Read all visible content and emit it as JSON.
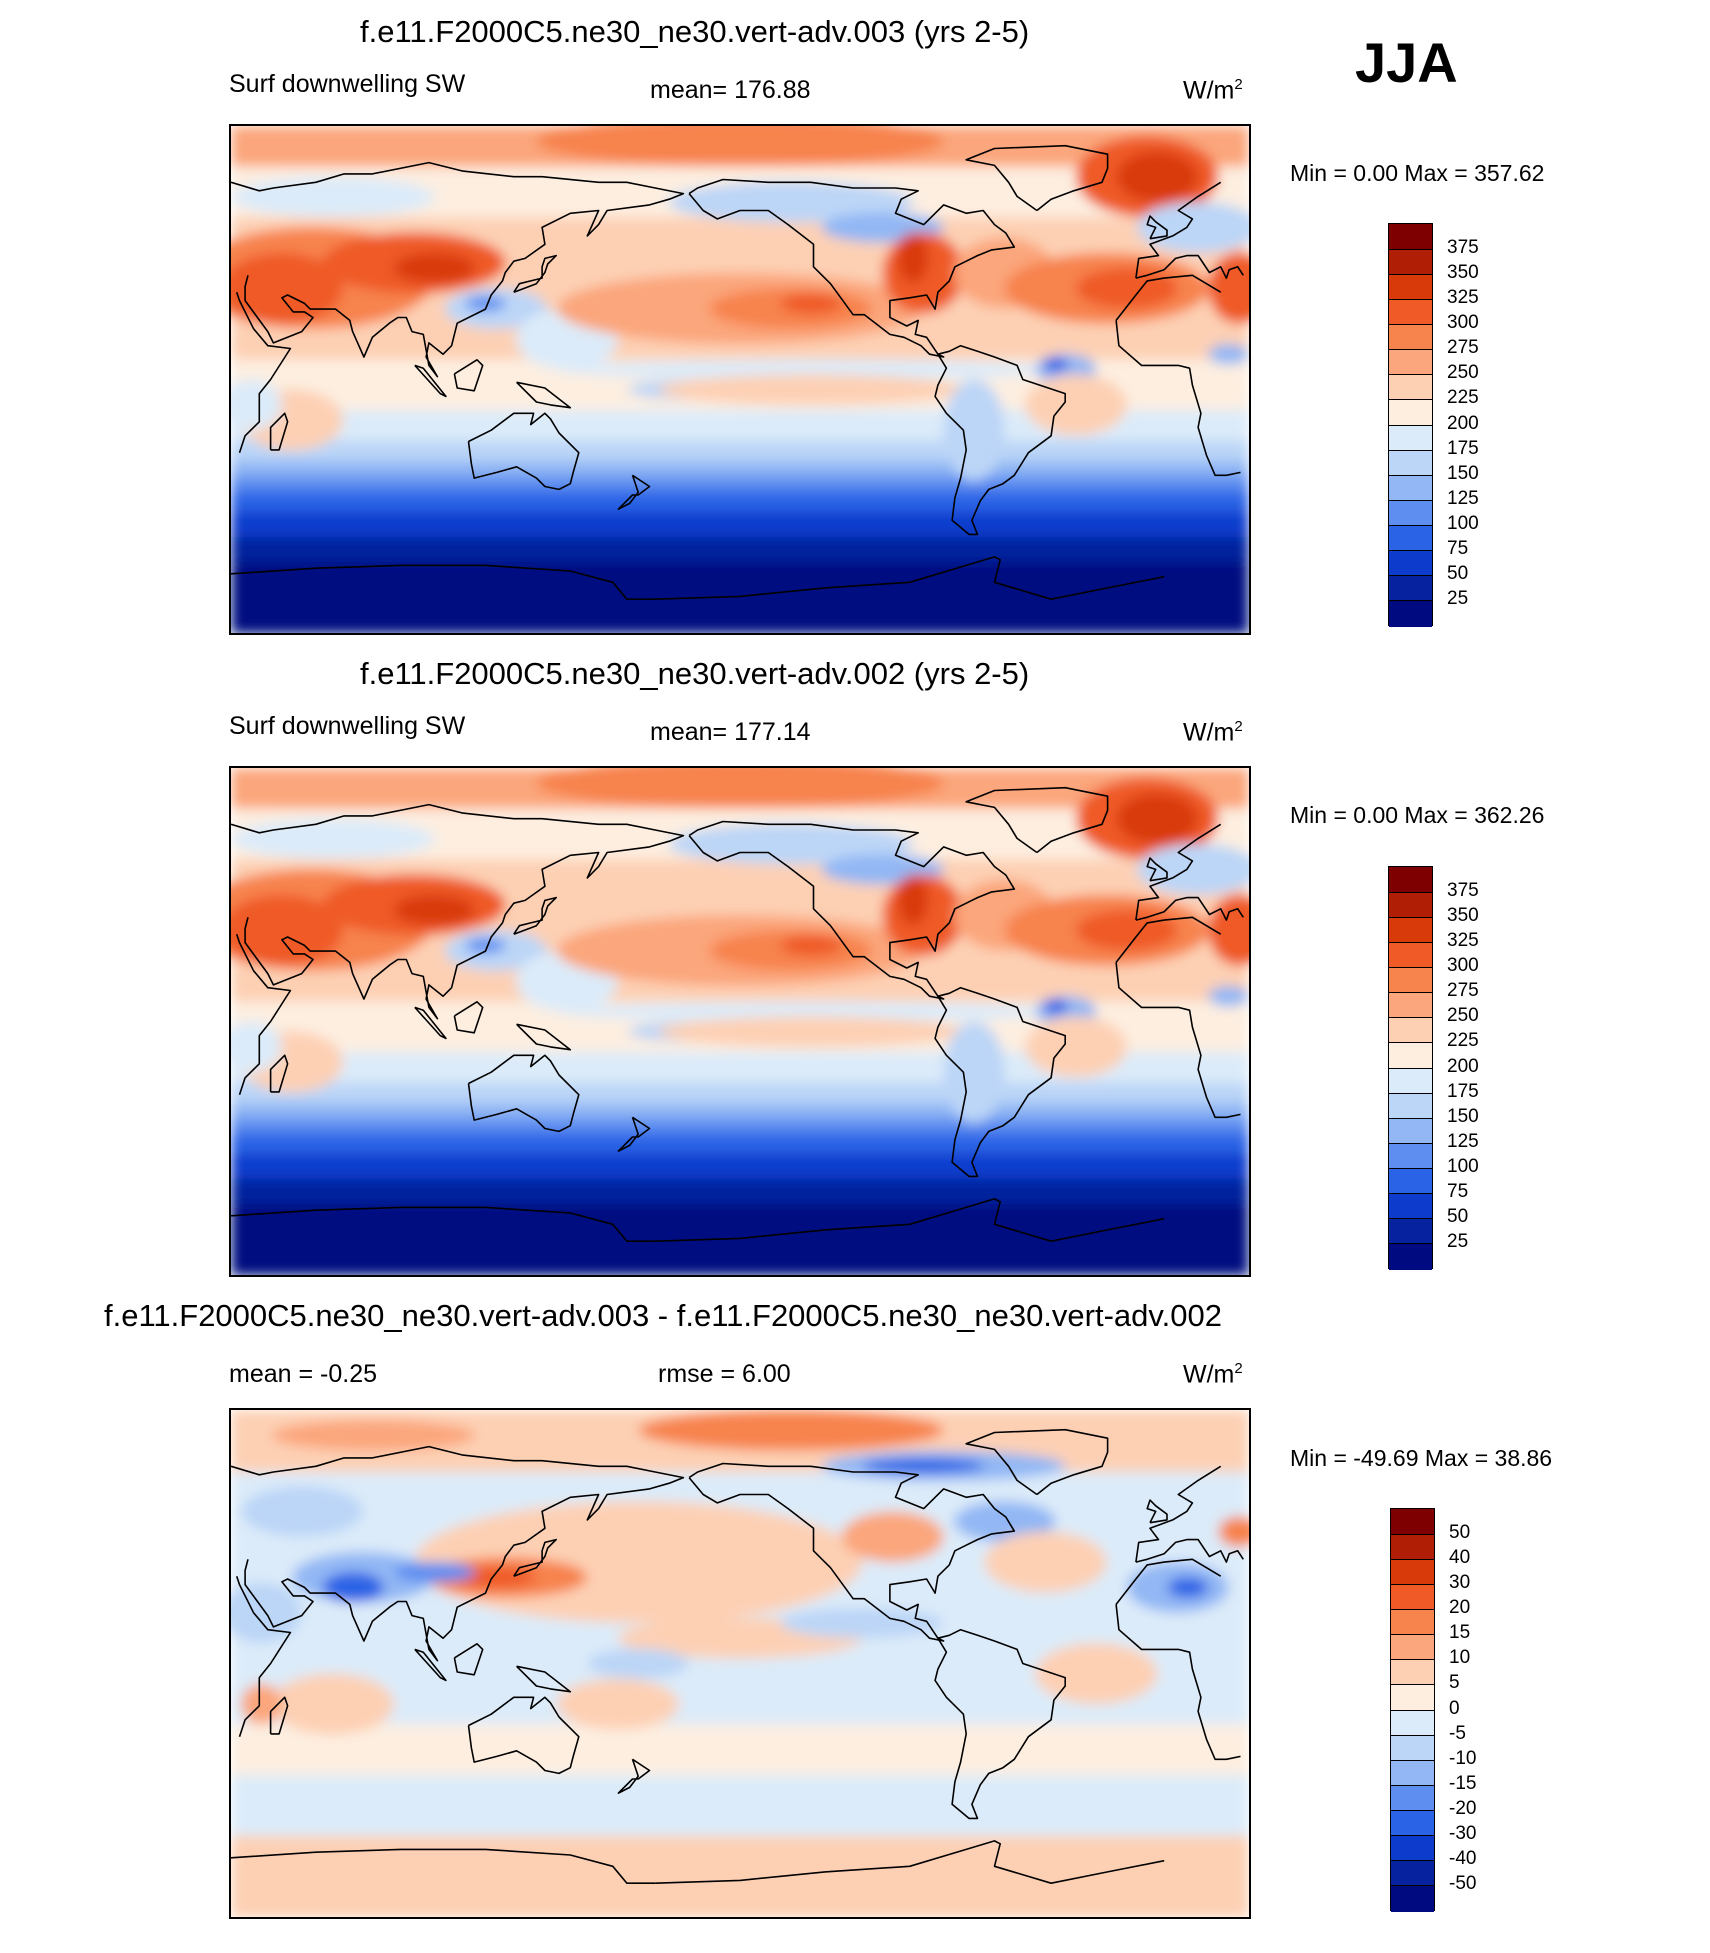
{
  "season": "JJA",
  "panels": [
    {
      "title": "f.e11.F2000C5.ne30_ne30.vert-adv.003 (yrs 2-5)",
      "left_label": "Surf downwelling SW",
      "center_label": "mean= 176.88",
      "units": "W/m",
      "units_sup": "2",
      "minmax": "Min =    0.00 Max = 357.62",
      "colorbar": {
        "labels": [
          "375",
          "350",
          "325",
          "300",
          "275",
          "250",
          "225",
          "200",
          "175",
          "150",
          "125",
          "100",
          "75",
          "50",
          "25"
        ],
        "colors": [
          "#7f0000",
          "#b01f05",
          "#d93a0a",
          "#ef5a27",
          "#f7834d",
          "#fba67c",
          "#fdd0b4",
          "#fdeee0",
          "#dcebf9",
          "#bcd6f7",
          "#92b7f4",
          "#5d8ef0",
          "#2a63e6",
          "#0d3ccd",
          "#06229e",
          "#000a80"
        ]
      },
      "field": "sw"
    },
    {
      "title": "f.e11.F2000C5.ne30_ne30.vert-adv.002 (yrs 2-5)",
      "left_label": "Surf downwelling SW",
      "center_label": "mean= 177.14",
      "units": "W/m",
      "units_sup": "2",
      "minmax": "Min =    0.00 Max = 362.26",
      "colorbar": {
        "labels": [
          "375",
          "350",
          "325",
          "300",
          "275",
          "250",
          "225",
          "200",
          "175",
          "150",
          "125",
          "100",
          "75",
          "50",
          "25"
        ],
        "colors": [
          "#7f0000",
          "#b01f05",
          "#d93a0a",
          "#ef5a27",
          "#f7834d",
          "#fba67c",
          "#fdd0b4",
          "#fdeee0",
          "#dcebf9",
          "#bcd6f7",
          "#92b7f4",
          "#5d8ef0",
          "#2a63e6",
          "#0d3ccd",
          "#06229e",
          "#000a80"
        ]
      },
      "field": "sw"
    },
    {
      "title": "f.e11.F2000C5.ne30_ne30.vert-adv.003 - f.e11.F2000C5.ne30_ne30.vert-adv.002",
      "left_label": "mean =  -0.25",
      "center_label": "rmse =   6.00",
      "units": "W/m",
      "units_sup": "2",
      "minmax": "Min = -49.69 Max =  38.86",
      "colorbar": {
        "labels": [
          "50",
          "40",
          "30",
          "20",
          "15",
          "10",
          "5",
          "0",
          "-5",
          "-10",
          "-15",
          "-20",
          "-30",
          "-40",
          "-50"
        ],
        "colors": [
          "#7f0000",
          "#b01f05",
          "#d93a0a",
          "#ef5a27",
          "#f7834d",
          "#fba67c",
          "#fdd0b4",
          "#fdeee0",
          "#dcebf9",
          "#bcd6f7",
          "#92b7f4",
          "#5d8ef0",
          "#2a63e6",
          "#0d3ccd",
          "#06229e",
          "#000a80"
        ]
      },
      "field": "diff"
    }
  ]
}
